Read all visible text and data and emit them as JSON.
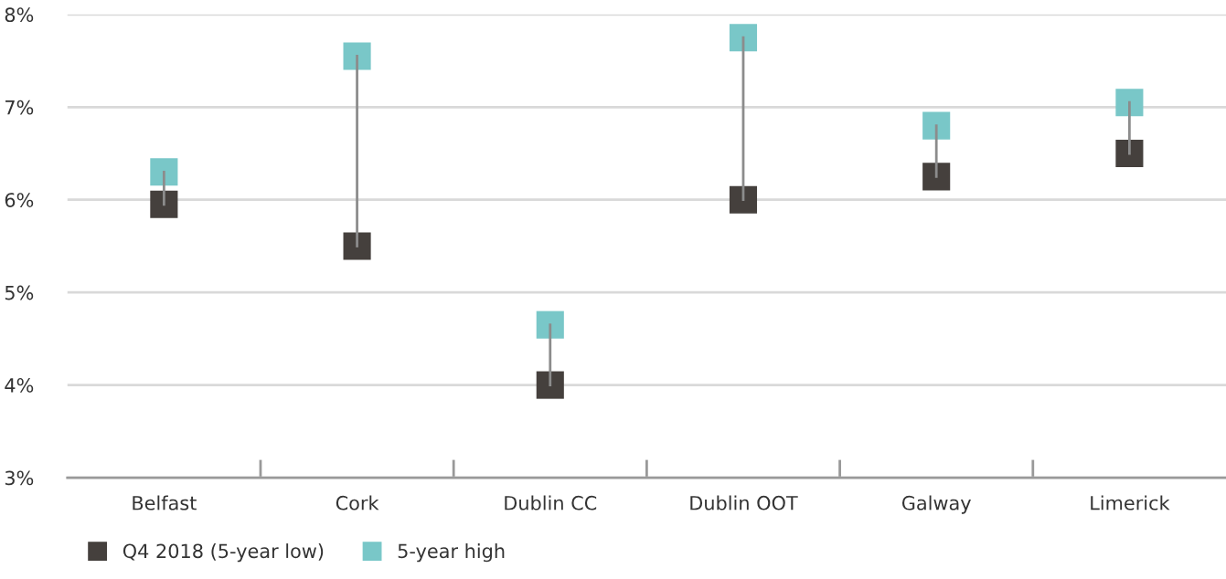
{
  "chart_data": {
    "type": "scatter",
    "categories": [
      "Belfast",
      "Cork",
      "Dublin CC",
      "Dublin OOT",
      "Galway",
      "Limerick"
    ],
    "series": [
      {
        "type": "line",
        "marker": "none",
        "color": "#8c8c8c",
        "x": [
          "Belfast",
          "Belfast"
        ],
        "values": [
          5.95,
          6.3
        ]
      },
      {
        "type": "line",
        "marker": "none",
        "color": "#8c8c8c",
        "x": [
          "Cork",
          "Cork"
        ],
        "values": [
          5.5,
          7.55
        ]
      },
      {
        "type": "line",
        "marker": "none",
        "color": "#8c8c8c",
        "x": [
          "Dublin CC",
          "Dublin CC"
        ],
        "values": [
          4.0,
          4.65
        ]
      },
      {
        "type": "line",
        "marker": "none",
        "color": "#8c8c8c",
        "x": [
          "Dublin OOT",
          "Dublin OOT"
        ],
        "values": [
          6.0,
          7.75
        ]
      },
      {
        "type": "line",
        "marker": "none",
        "color": "#8c8c8c",
        "x": [
          "Galway",
          "Galway"
        ],
        "values": [
          6.25,
          6.8
        ]
      },
      {
        "type": "line",
        "marker": "none",
        "color": "#8c8c8c",
        "x": [
          "Limerick",
          "Limerick"
        ],
        "values": [
          6.5,
          7.05
        ]
      },
      {
        "name": "Q4 2018 (5-year low)",
        "color": "#45403d",
        "values": [
          5.95,
          5.5,
          4.0,
          6.0,
          6.25,
          6.5
        ]
      },
      {
        "name": "5-year high",
        "color": "#79c7c8",
        "values": [
          6.3,
          7.55,
          4.65,
          7.75,
          6.8,
          7.05
        ]
      }
    ],
    "ylim": [
      3,
      8
    ],
    "yticks": [
      {
        "value": 3,
        "label": "3%"
      },
      {
        "value": 4,
        "label": "4%"
      },
      {
        "value": 5,
        "label": "5%"
      },
      {
        "value": 6,
        "label": "6%"
      },
      {
        "value": 7,
        "label": "7%"
      },
      {
        "value": 8,
        "label": "8%"
      }
    ],
    "grid": "y",
    "legend": "bottom left",
    "marker": "square"
  }
}
